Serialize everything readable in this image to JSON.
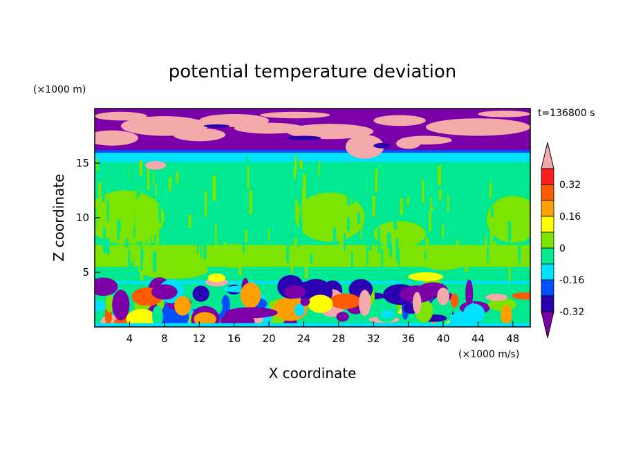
{
  "chart_data": {
    "type": "heatmap",
    "title": "potential temperature deviation",
    "xlabel": "X coordinate",
    "ylabel": "Z coordinate",
    "x_unit": "(×1000 m/s)",
    "y_unit": "(×1000 m)",
    "time_label": "t=136800 s",
    "xlim": [
      0,
      50
    ],
    "ylim": [
      0,
      20
    ],
    "x_ticks": [
      4,
      8,
      12,
      16,
      20,
      24,
      28,
      32,
      36,
      40,
      44,
      48
    ],
    "y_ticks": [
      5,
      10,
      15
    ],
    "colorbar": {
      "levels": [
        -0.4,
        -0.32,
        -0.24,
        -0.16,
        -0.08,
        0,
        0.08,
        0.16,
        0.24,
        0.32,
        0.4
      ],
      "labels": [
        "0.32",
        "0.16",
        "0",
        "-0.16",
        "-0.32"
      ],
      "label_values": [
        0.32,
        0.16,
        0,
        -0.16,
        -0.32
      ],
      "colors": [
        "#7b00a8",
        "#2b00b0",
        "#0050ff",
        "#00e0ff",
        "#00e890",
        "#7ce400",
        "#ffff00",
        "#ffa000",
        "#ff5a00",
        "#ff1e1e",
        "#f4aaaa"
      ],
      "extend": "both"
    }
  }
}
